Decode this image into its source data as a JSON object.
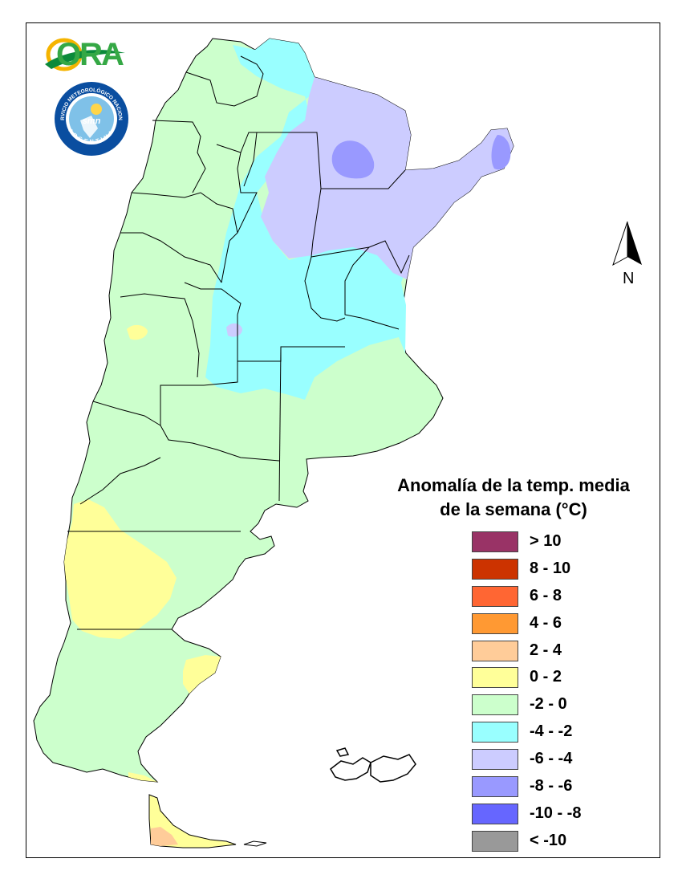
{
  "logos": {
    "ora_text": "ORA",
    "smn_ring_top": "SERVICIO METEOROLÓGICO NACIONAL",
    "smn_ring_bottom": "ARGENTINA",
    "smn_center": "smn"
  },
  "north_arrow": {
    "label": "N",
    "icon": "north-arrow-icon"
  },
  "legend": {
    "title_line1": "Anomalía de la temp. media",
    "title_line2": "de la semana (°C)",
    "items": [
      {
        "label": "> 10",
        "color": "#993366"
      },
      {
        "label": "8 - 10",
        "color": "#cc3300"
      },
      {
        "label": "6 - 8",
        "color": "#ff6633"
      },
      {
        "label": "4 - 6",
        "color": "#ff9933"
      },
      {
        "label": "2 - 4",
        "color": "#ffcc99"
      },
      {
        "label": "0 - 2",
        "color": "#ffff99"
      },
      {
        "label": "-2 - 0",
        "color": "#ccffcc"
      },
      {
        "label": "-4 - -2",
        "color": "#99ffff"
      },
      {
        "label": "-6 - -4",
        "color": "#ccccff"
      },
      {
        "label": "-8 - -6",
        "color": "#9999ff"
      },
      {
        "label": "-10 - -8",
        "color": "#6666ff"
      },
      {
        "label": "< -10",
        "color": "#999999"
      }
    ]
  },
  "map_colors": {
    "green": "#ccffcc",
    "cyan": "#99ffff",
    "lavender": "#ccccff",
    "blue": "#9999ff",
    "yellow": "#ffff99",
    "peach": "#ffcc99"
  }
}
